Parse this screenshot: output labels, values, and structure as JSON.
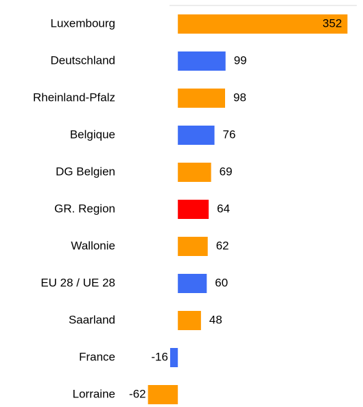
{
  "chart_data": {
    "type": "bar",
    "orientation": "horizontal",
    "categories": [
      "Luxembourg",
      "Deutschland",
      "Rheinland-Pfalz",
      "Belgique",
      "DG Belgien",
      "GR. Region",
      "Wallonie",
      "EU 28 / UE 28",
      "Saarland",
      "France",
      "Lorraine"
    ],
    "values": [
      352,
      99,
      98,
      76,
      69,
      64,
      62,
      60,
      48,
      -16,
      -62
    ],
    "colors": [
      "#ff9900",
      "#3d6cf5",
      "#ff9900",
      "#3d6cf5",
      "#ff9900",
      "#ff0000",
      "#ff9900",
      "#3d6cf5",
      "#ff9900",
      "#3d6cf5",
      "#ff9900"
    ],
    "xlim": [
      -80,
      370
    ]
  }
}
